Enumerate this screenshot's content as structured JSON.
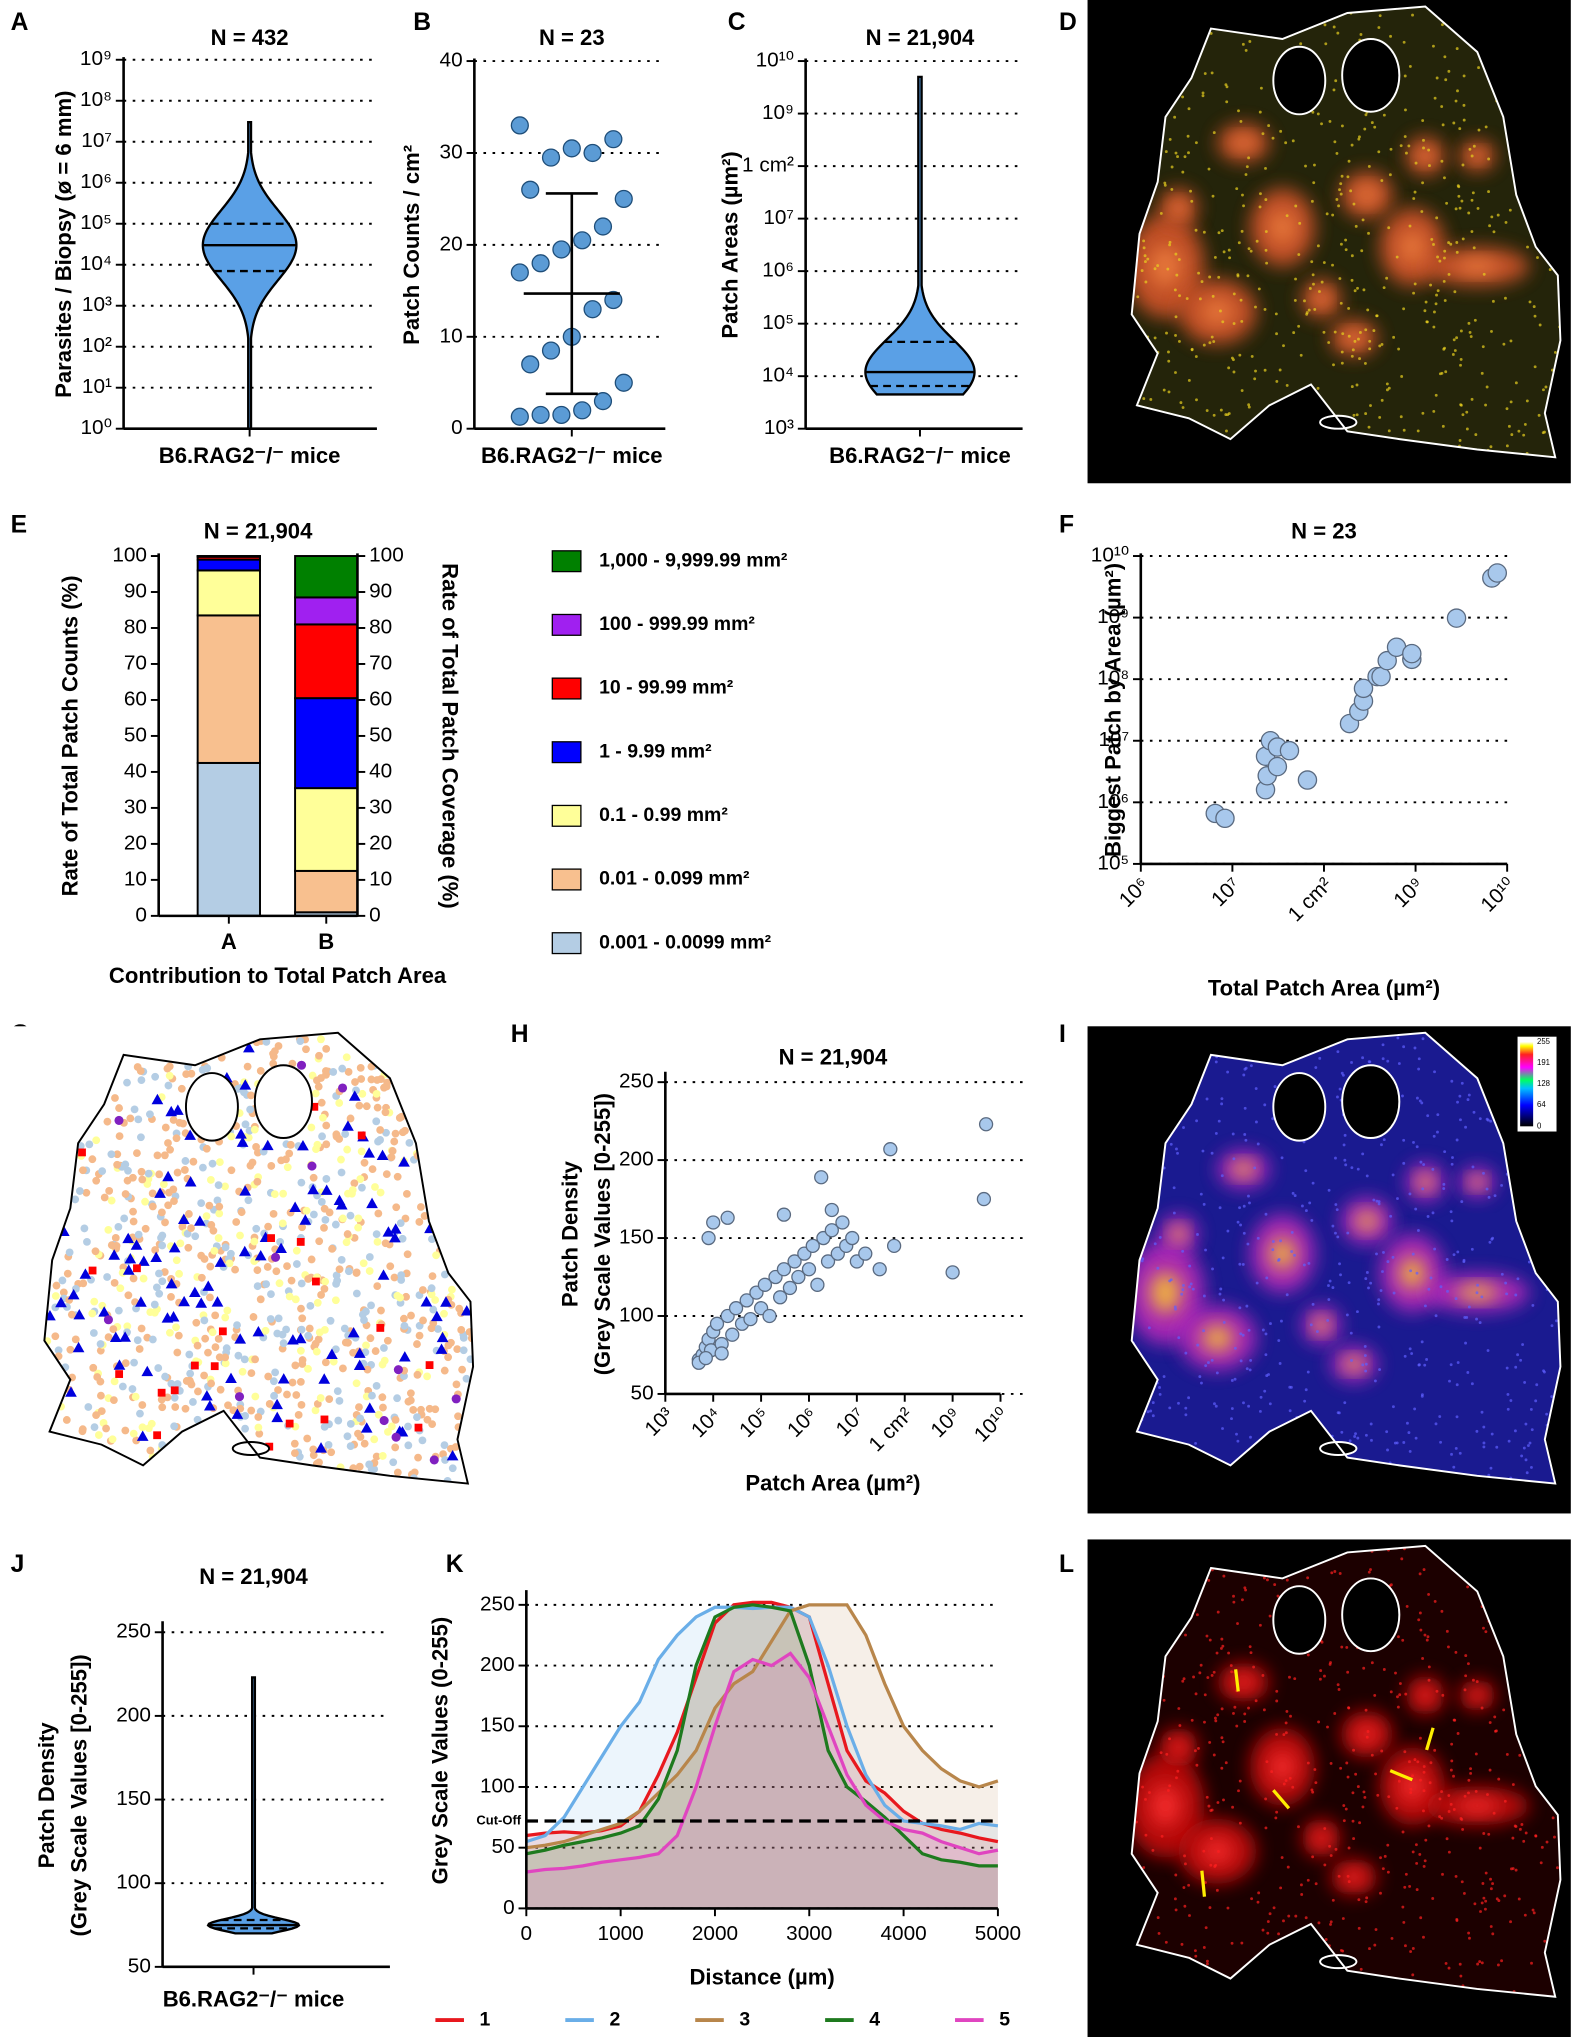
{
  "chart_data": [
    {
      "panel": "A",
      "type": "violin",
      "title": "N = 432",
      "ylabel": "Parasites / Biopsy (ø = 6 mm)",
      "xlabel": "B6.RAG2⁻/⁻ mice",
      "ylog": true,
      "ylim": [
        1,
        1000000000
      ],
      "yticks": [
        {
          "value": 1,
          "label": "10⁰"
        },
        {
          "value": 10,
          "label": "10¹"
        },
        {
          "value": 100,
          "label": "10²"
        },
        {
          "value": 1000,
          "label": "10³"
        },
        {
          "value": 10000,
          "label": "10⁴"
        },
        {
          "value": 100000,
          "label": "10⁵"
        },
        {
          "value": 1000000,
          "label": "10⁶"
        },
        {
          "value": 10000000,
          "label": "10⁷"
        },
        {
          "value": 100000000,
          "label": "10⁸"
        },
        {
          "value": 1000000000,
          "label": "10⁹"
        }
      ],
      "grid": true,
      "color": "#5aa0e6",
      "violin": {
        "min": 1,
        "q1": 7000,
        "median": 30000,
        "q3": 100000,
        "max": 30000000
      }
    },
    {
      "panel": "B",
      "type": "dot",
      "title": "N = 23",
      "ylabel": "Patch Counts / cm²",
      "xlabel": "B6.RAG2⁻/⁻ mice",
      "ylim": [
        0,
        40
      ],
      "yticks": [
        0,
        10,
        20,
        30,
        40
      ],
      "grid": true,
      "color": "#5b9bd5",
      "values": [
        33,
        31.5,
        30,
        30.5,
        29.5,
        26,
        25,
        22,
        20.5,
        19.5,
        18,
        17,
        14,
        13,
        10,
        8.5,
        7,
        5,
        3,
        2,
        1.5,
        1.5,
        1.3
      ],
      "mean": 14.7,
      "sd": 10.9
    },
    {
      "panel": "C",
      "type": "violin",
      "title": "N = 21,904",
      "ylabel": "Patch Areas (µm²)",
      "xlabel": "B6.RAG2⁻/⁻ mice",
      "ylog": true,
      "ylim": [
        1000,
        10000000000
      ],
      "yticks": [
        {
          "value": 1000,
          "label": "10³"
        },
        {
          "value": 10000,
          "label": "10⁴"
        },
        {
          "value": 100000,
          "label": "10⁵"
        },
        {
          "value": 1000000,
          "label": "10⁶"
        },
        {
          "value": 10000000,
          "label": "10⁷"
        },
        {
          "value": 100000000,
          "label": "1 cm²"
        },
        {
          "value": 1000000000,
          "label": "10⁹"
        },
        {
          "value": 10000000000,
          "label": "10¹⁰"
        }
      ],
      "grid": true,
      "color": "#5aa0e6",
      "violin": {
        "min": 4500,
        "q1": 6500,
        "median": 12000,
        "q3": 45000,
        "max": 5000000000
      }
    },
    {
      "panel": "D",
      "type": "image"
    },
    {
      "panel": "E",
      "type": "stacked_bar",
      "title": "N = 21,904",
      "xlabel": "Contribution to Total Patch Area",
      "ylabel": "Rate of Total Patch Counts (%)",
      "y2label": "Rate of Total Patch Coverage (%)",
      "categories": [
        "A",
        "B"
      ],
      "ylim": [
        0,
        100
      ],
      "yticks": [
        0,
        10,
        20,
        30,
        40,
        50,
        60,
        70,
        80,
        90,
        100
      ],
      "y2lim": [
        0,
        100
      ],
      "y2ticks": [
        0,
        10,
        20,
        30,
        40,
        50,
        60,
        70,
        80,
        90,
        100
      ],
      "series": [
        {
          "name": "0.001 - 0.0099 mm²",
          "color": "#b4cde4",
          "values": [
            42.5,
            1
          ]
        },
        {
          "name": "0.01 - 0.099 mm²",
          "color": "#f8c08f",
          "values": [
            41,
            11.5
          ]
        },
        {
          "name": "0.1 - 0.99 mm²",
          "color": "#ffff99",
          "values": [
            12.5,
            23
          ]
        },
        {
          "name": "1 - 9.99 mm²",
          "color": "#0000ff",
          "values": [
            3,
            25
          ]
        },
        {
          "name": "10 - 99.99 mm²",
          "color": "#ff0000",
          "values": [
            0.8,
            20.5
          ]
        },
        {
          "name": "100 - 999.99 mm²",
          "color": "#a020f0",
          "values": [
            0.15,
            7.5
          ]
        },
        {
          "name": "1,000 - 9,999.99 mm²",
          "color": "#008000",
          "values": [
            0.05,
            11.5
          ]
        }
      ]
    },
    {
      "panel": "F",
      "type": "scatter",
      "title": "N = 23",
      "xlabel": "Total Patch Area (µm²)",
      "ylabel": "Biggest Patch by Area  (µm²)",
      "xlog": true,
      "ylog": true,
      "xlim": [
        1000000,
        10000000000
      ],
      "ylim": [
        100000,
        10000000000
      ],
      "xticks": [
        {
          "value": 1000000,
          "label": "10⁶"
        },
        {
          "value": 10000000,
          "label": "10⁷"
        },
        {
          "value": 100000000,
          "label": "1 cm²"
        },
        {
          "value": 1000000000,
          "label": "10⁹"
        },
        {
          "value": 10000000000,
          "label": "10¹⁰"
        }
      ],
      "yticks": [
        {
          "value": 100000,
          "label": "10⁵"
        },
        {
          "value": 1000000,
          "label": "10⁶"
        },
        {
          "value": 10000000,
          "label": "10⁷"
        },
        {
          "value": 100000000,
          "label": "10⁸"
        },
        {
          "value": 1000000000,
          "label": "10⁹"
        },
        {
          "value": 10000000000,
          "label": "10¹⁰"
        }
      ],
      "grid": true,
      "color": "#a8c8ec",
      "x": [
        6500000,
        8300000,
        23000000,
        24000000,
        23000000,
        26000000,
        31000000,
        31000000,
        42000000,
        66000000,
        190000000,
        240000000,
        270000000,
        270000000,
        380000000,
        420000000,
        490000000,
        620000000,
        910000000,
        910000000,
        2800000000,
        6800000000,
        7800000000
      ],
      "y": [
        660000,
        550000,
        1600000,
        2700000,
        5600000,
        10000000,
        7900000,
        3800000,
        6900000,
        2300000,
        19000000,
        30000000,
        44000000,
        71000000,
        110000000,
        110000000,
        200000000,
        330000000,
        210000000,
        260000000,
        980000000,
        4400000000,
        5300000000
      ]
    },
    {
      "panel": "G",
      "type": "image"
    },
    {
      "panel": "H",
      "type": "scatter",
      "title": "N = 21,904",
      "xlabel": "Patch Area (µm²)",
      "ylabel": [
        "Patch Density",
        "(Grey Scale Values [0-255])"
      ],
      "xlog": true,
      "xlim": [
        1000,
        10000000000
      ],
      "ylim": [
        50,
        255
      ],
      "xticks": [
        {
          "value": 1000,
          "label": "10³"
        },
        {
          "value": 10000,
          "label": "10⁴"
        },
        {
          "value": 100000,
          "label": "10⁵"
        },
        {
          "value": 1000000,
          "label": "10⁶"
        },
        {
          "value": 10000000,
          "label": "10⁷"
        },
        {
          "value": 100000000,
          "label": "1 cm²"
        },
        {
          "value": 1000000000,
          "label": "10⁹"
        },
        {
          "value": 10000000000,
          "label": "10¹⁰"
        }
      ],
      "yticks": [
        50,
        100,
        150,
        200,
        250
      ],
      "grid": true,
      "color": "#a8c8ec",
      "x": [
        5000,
        6000,
        7000,
        8000,
        9000,
        10000,
        12000,
        15000,
        20000,
        25000,
        30000,
        40000,
        50000,
        60000,
        80000,
        100000,
        120000,
        150000,
        200000,
        250000,
        300000,
        400000,
        500000,
        600000,
        800000,
        1000000,
        1200000,
        1500000,
        2000000,
        2500000,
        3000000,
        4000000,
        5000000,
        6000000,
        8000000,
        10000000,
        15000000,
        50000000,
        1800000,
        10000,
        20000,
        8000,
        300000,
        3000000,
        30000000,
        60000000,
        1000000000,
        5000000000,
        4500000000,
        5000,
        7000,
        15000
      ],
      "y": [
        72,
        75,
        80,
        85,
        78,
        90,
        95,
        82,
        100,
        88,
        105,
        95,
        110,
        98,
        115,
        105,
        120,
        100,
        125,
        112,
        130,
        118,
        135,
        125,
        140,
        130,
        145,
        120,
        150,
        135,
        155,
        140,
        160,
        145,
        150,
        135,
        140,
        207,
        189,
        160,
        163,
        150,
        165,
        168,
        130,
        145,
        128,
        223,
        175,
        70,
        73,
        76
      ]
    },
    {
      "panel": "I",
      "type": "image",
      "colorbar_ticks": [
        255,
        191,
        128,
        64,
        0
      ]
    },
    {
      "panel": "J",
      "type": "violin",
      "title": "N = 21,904",
      "ylabel": [
        "Patch Density",
        "(Grey Scale Values [0-255])"
      ],
      "xlabel": "B6.RAG2⁻/⁻ mice",
      "ylim": [
        50,
        255
      ],
      "yticks": [
        50,
        100,
        150,
        200,
        250
      ],
      "grid": true,
      "color": "#5aa0e6",
      "violin": {
        "min": 70,
        "q1": 73,
        "median": 75,
        "q3": 78,
        "max": 223
      }
    },
    {
      "panel": "K",
      "type": "line",
      "xlabel": "Distance (µm)",
      "ylabel": "Grey Scale Values (0-255)",
      "x": [
        0,
        200,
        400,
        600,
        800,
        1000,
        1200,
        1400,
        1600,
        1800,
        2000,
        2200,
        2400,
        2600,
        2800,
        3000,
        3200,
        3400,
        3600,
        3800,
        4000,
        4200,
        4400,
        4600,
        4800,
        5000
      ],
      "xlim": [
        0,
        5000
      ],
      "xticks": [
        0,
        1000,
        2000,
        3000,
        4000,
        5000
      ],
      "ylim": [
        0,
        260
      ],
      "yticks": [
        0,
        50,
        100,
        150,
        200,
        250
      ],
      "grid": true,
      "cut_off": 72,
      "cut_off_label": "Cut-Off",
      "series": [
        {
          "name": "1",
          "color": "#e8181e",
          "values": [
            60,
            62,
            63,
            62,
            64,
            68,
            80,
            110,
            145,
            190,
            235,
            250,
            252,
            252,
            248,
            240,
            185,
            130,
            105,
            95,
            80,
            70,
            65,
            62,
            58,
            55
          ]
        },
        {
          "name": "2",
          "color": "#6aaee8",
          "values": [
            55,
            60,
            75,
            100,
            125,
            150,
            170,
            205,
            225,
            240,
            248,
            248,
            247,
            248,
            248,
            240,
            200,
            150,
            110,
            85,
            72,
            70,
            68,
            65,
            70,
            68
          ]
        },
        {
          "name": "3",
          "color": "#b8864b",
          "values": [
            50,
            52,
            55,
            60,
            65,
            70,
            80,
            95,
            110,
            130,
            165,
            185,
            195,
            220,
            245,
            250,
            250,
            250,
            225,
            185,
            150,
            130,
            115,
            105,
            100,
            105
          ]
        },
        {
          "name": "4",
          "color": "#1e7a1e",
          "values": [
            45,
            48,
            52,
            55,
            58,
            62,
            68,
            90,
            130,
            200,
            240,
            248,
            250,
            248,
            245,
            200,
            130,
            100,
            88,
            75,
            60,
            45,
            40,
            38,
            35,
            35
          ]
        },
        {
          "name": "5",
          "color": "#e045c0",
          "values": [
            30,
            32,
            33,
            35,
            38,
            40,
            42,
            45,
            60,
            100,
            150,
            195,
            205,
            200,
            210,
            190,
            150,
            110,
            85,
            72,
            65,
            62,
            55,
            50,
            45,
            48
          ]
        }
      ]
    },
    {
      "panel": "L",
      "type": "image"
    }
  ]
}
